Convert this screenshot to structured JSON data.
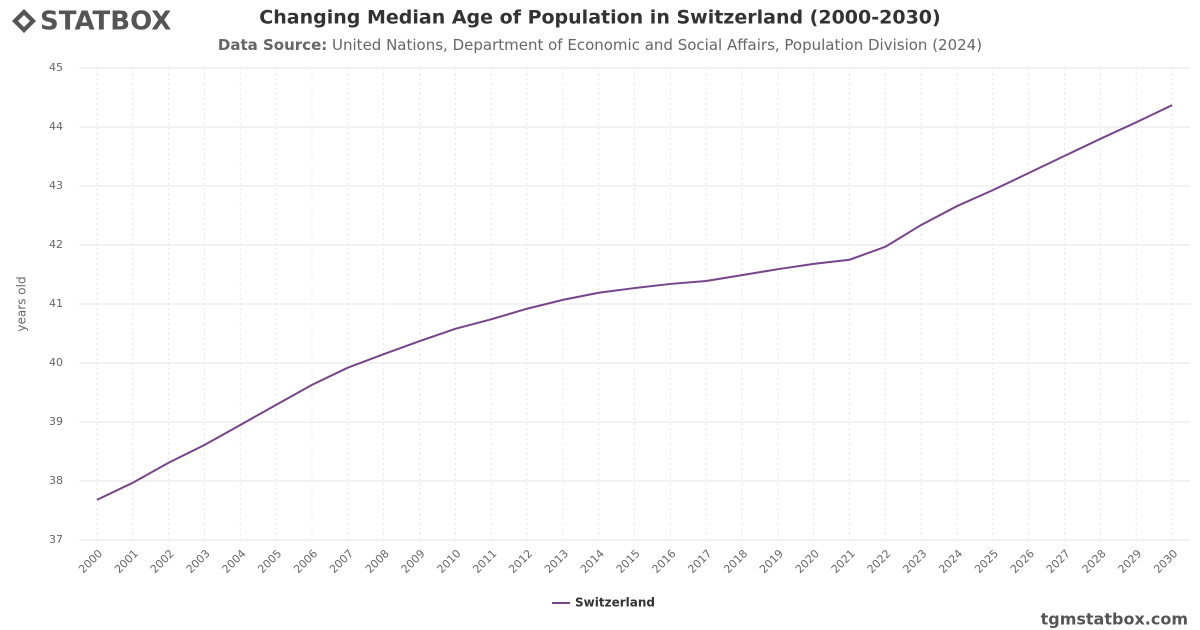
{
  "chart_data": {
    "type": "line",
    "logo": "STATBOX",
    "title": "Changing Median Age of Population in Switzerland (2000-2030)",
    "source_label": "Data Source:",
    "source": "United Nations, Department of Economic and Social Affairs, Population Division (2024)",
    "y_label": "years old",
    "categories": [
      "2000",
      "2001",
      "2002",
      "2003",
      "2004",
      "2005",
      "2006",
      "2007",
      "2008",
      "2009",
      "2010",
      "2011",
      "2012",
      "2013",
      "2014",
      "2015",
      "2016",
      "2017",
      "2018",
      "2019",
      "2020",
      "2021",
      "2022",
      "2023",
      "2024",
      "2025",
      "2026",
      "2027",
      "2028",
      "2029",
      "2030"
    ],
    "series": [
      {
        "name": "Switzerland",
        "color": "#76448a",
        "values": [
          37.68,
          37.97,
          38.31,
          38.61,
          38.95,
          39.29,
          39.63,
          39.92,
          40.15,
          40.37,
          40.58,
          40.74,
          40.92,
          41.07,
          41.19,
          41.27,
          41.34,
          41.39,
          41.49,
          41.59,
          41.68,
          41.75,
          41.97,
          42.34,
          42.66,
          42.93,
          43.22,
          43.51,
          43.8,
          44.08,
          44.37
        ]
      }
    ],
    "ylim": [
      37,
      45
    ],
    "yticks": [
      37,
      38,
      39,
      40,
      41,
      42,
      43,
      44,
      45
    ],
    "grid": true,
    "footer": "tgmstatbox.com"
  }
}
